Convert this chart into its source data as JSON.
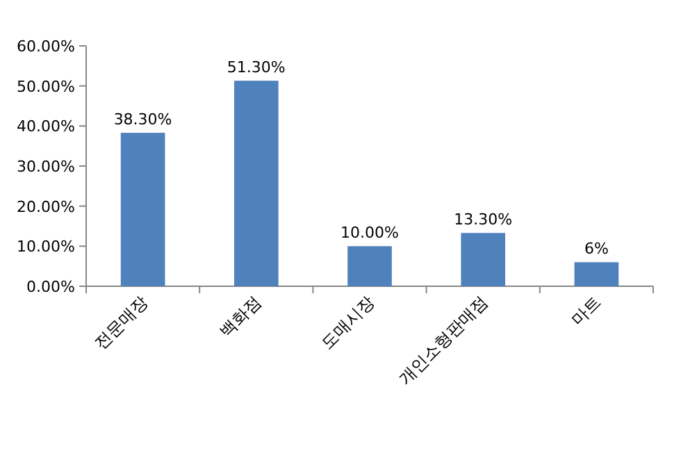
{
  "chart_data": {
    "type": "bar",
    "categories": [
      "전문매장",
      "백화점",
      "도매시장",
      "개인소형판매점",
      "마트"
    ],
    "values": [
      38.3,
      51.3,
      10,
      13.3,
      6
    ],
    "value_labels": [
      "38.30%",
      "51.30%",
      "10.00%",
      "13.30%",
      "6%"
    ],
    "color": "#4f81bd",
    "ylim": [
      0,
      60
    ],
    "yticks": [
      {
        "value": 0,
        "label": "0.00%"
      },
      {
        "value": 10,
        "label": "10.00%"
      },
      {
        "value": 20,
        "label": "20.00%"
      },
      {
        "value": 30,
        "label": "30.00%"
      },
      {
        "value": 40,
        "label": "40.00%"
      },
      {
        "value": 50,
        "label": "50.00%"
      },
      {
        "value": 60,
        "label": "60.00%"
      }
    ]
  }
}
